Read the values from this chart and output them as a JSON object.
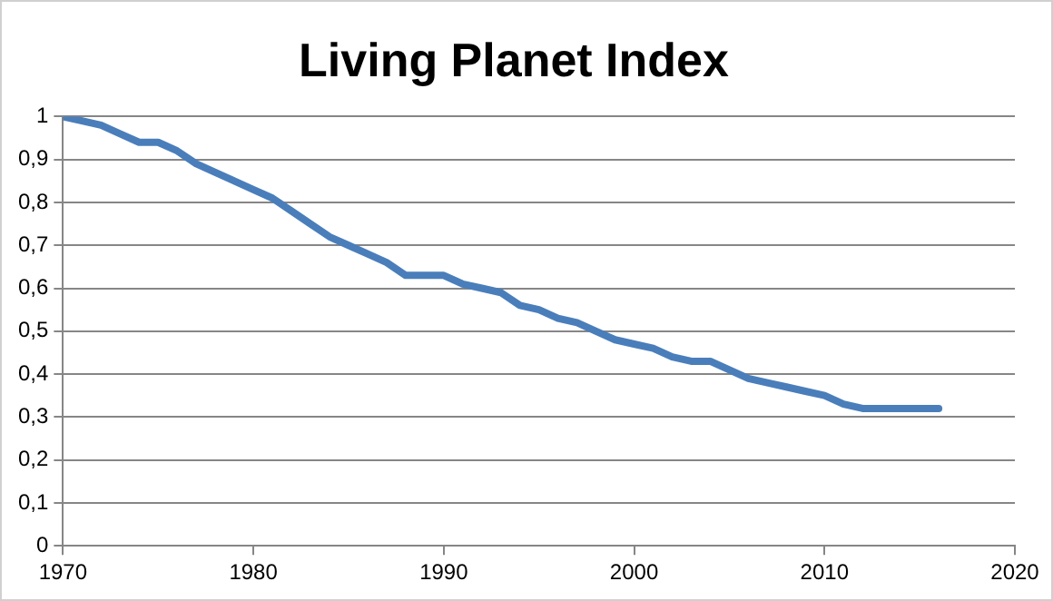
{
  "chart_data": {
    "type": "line",
    "title": "Living Planet Index",
    "x": [
      1970,
      1971,
      1972,
      1973,
      1974,
      1975,
      1976,
      1977,
      1978,
      1979,
      1980,
      1981,
      1982,
      1983,
      1984,
      1985,
      1986,
      1987,
      1988,
      1989,
      1990,
      1991,
      1992,
      1993,
      1994,
      1995,
      1996,
      1997,
      1998,
      1999,
      2000,
      2001,
      2002,
      2003,
      2004,
      2005,
      2006,
      2007,
      2008,
      2009,
      2010,
      2011,
      2012,
      2013,
      2014,
      2015,
      2016
    ],
    "series": [
      {
        "color": "#4a7ebb",
        "values": [
          1.0,
          0.99,
          0.98,
          0.96,
          0.94,
          0.94,
          0.92,
          0.89,
          0.87,
          0.85,
          0.83,
          0.81,
          0.78,
          0.75,
          0.72,
          0.7,
          0.68,
          0.66,
          0.63,
          0.63,
          0.63,
          0.61,
          0.6,
          0.59,
          0.56,
          0.55,
          0.53,
          0.52,
          0.5,
          0.48,
          0.47,
          0.46,
          0.44,
          0.43,
          0.43,
          0.41,
          0.39,
          0.38,
          0.37,
          0.36,
          0.35,
          0.33,
          0.32,
          0.32,
          0.32,
          0.32,
          0.32
        ]
      }
    ],
    "xlim": [
      1970,
      2020
    ],
    "xticks": [
      1970,
      1980,
      1990,
      2000,
      2010,
      2020
    ],
    "ylim": [
      0,
      1
    ],
    "yticks": [
      0,
      {
        "value": 0.1,
        "label": "0,1"
      },
      {
        "value": 0.2,
        "label": "0,2"
      },
      {
        "value": 0.3,
        "label": "0,3"
      },
      {
        "value": 0.4,
        "label": "0,4"
      },
      {
        "value": 0.5,
        "label": "0,5"
      },
      {
        "value": 0.6,
        "label": "0,6"
      },
      {
        "value": 0.7,
        "label": "0,7"
      },
      {
        "value": 0.8,
        "label": "0,8"
      },
      {
        "value": 0.9,
        "label": "0,9"
      },
      1
    ],
    "grid": "y",
    "legend": false,
    "marker": "none",
    "line_style": "solid"
  }
}
